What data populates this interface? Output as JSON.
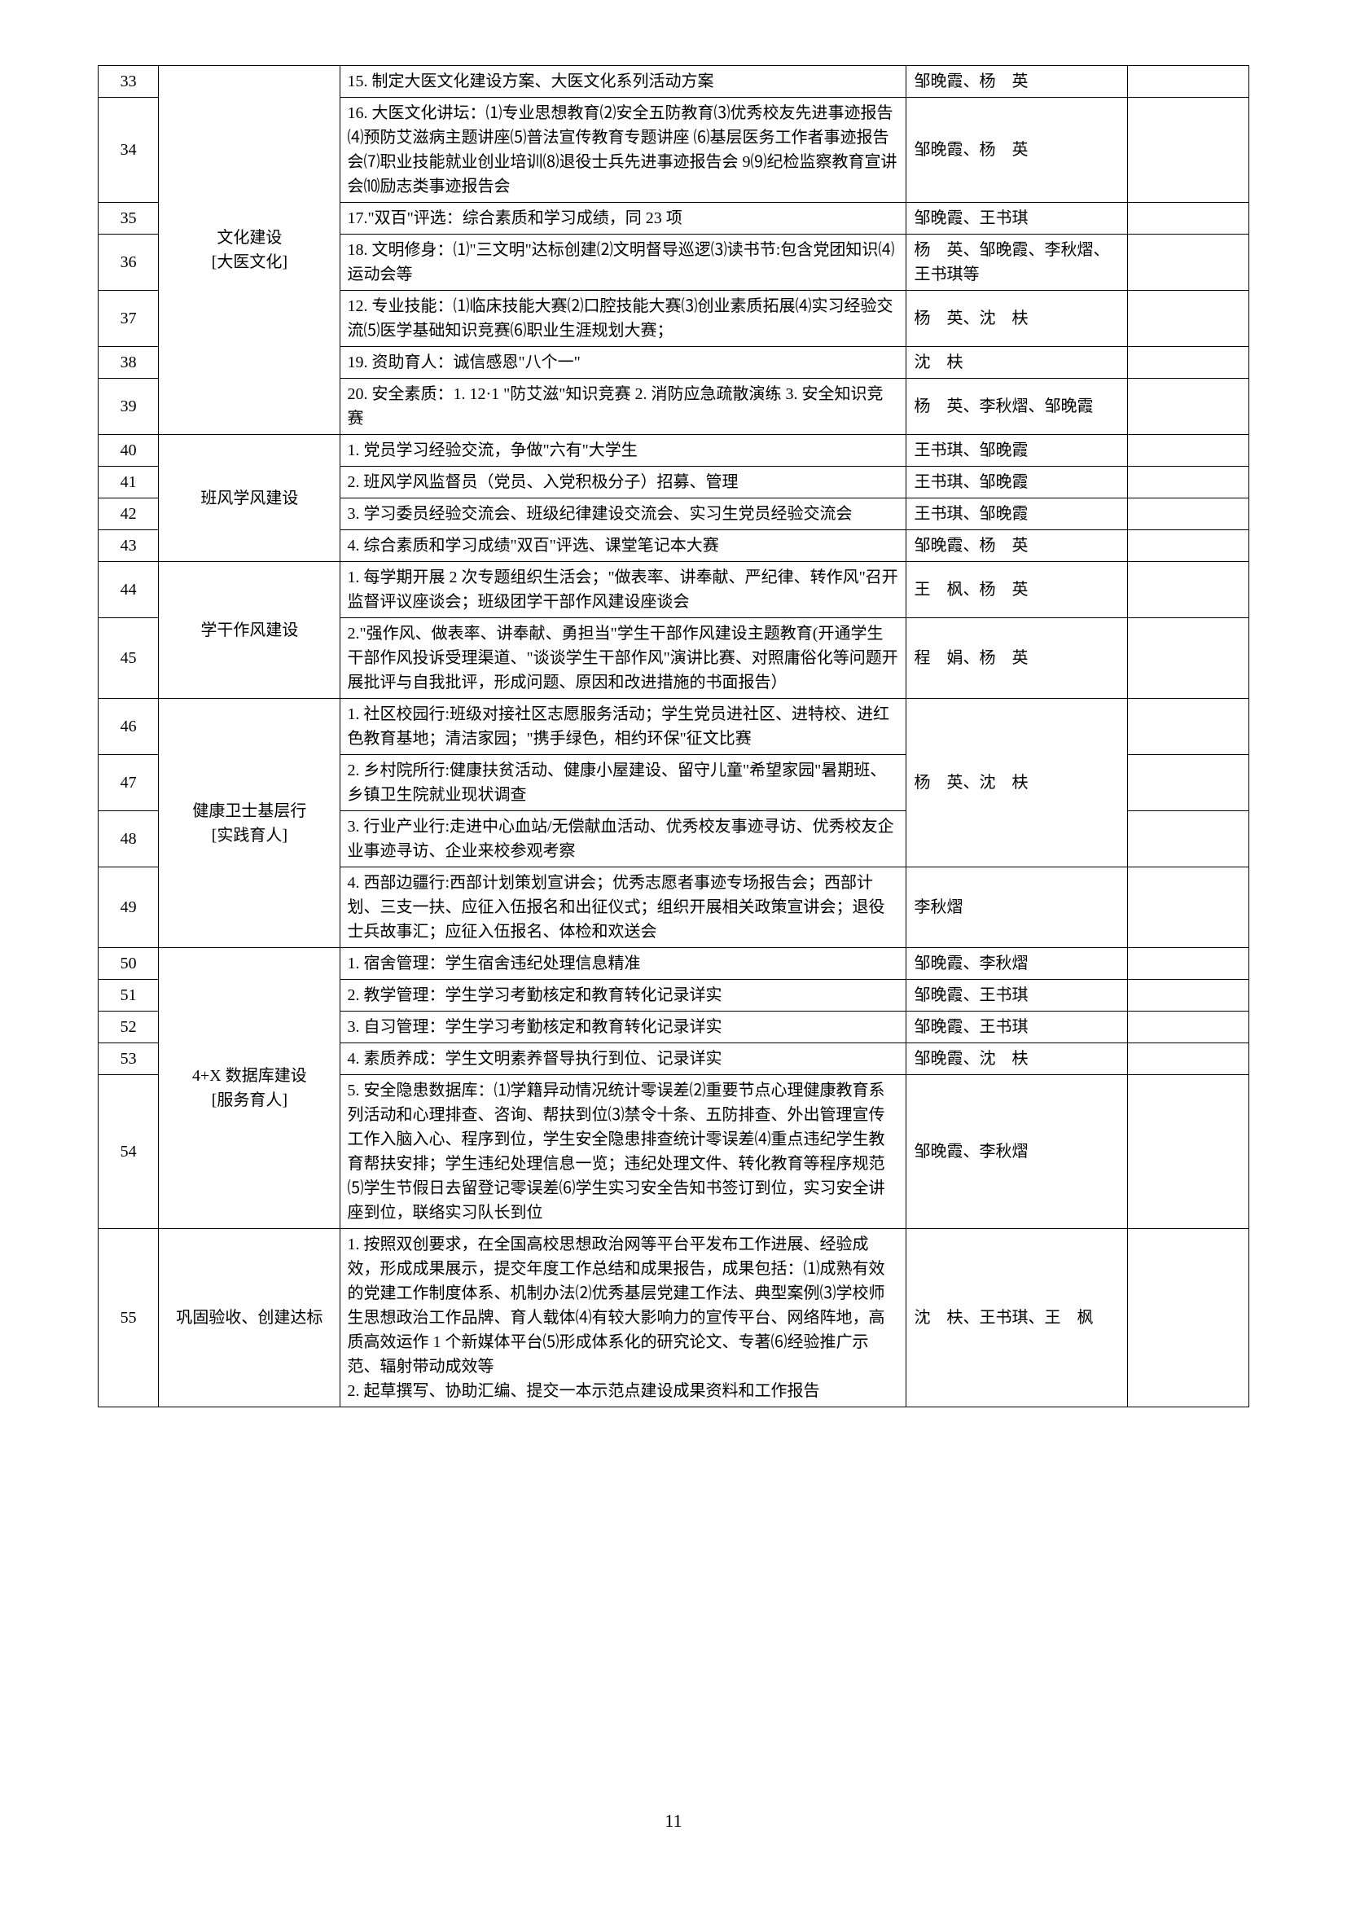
{
  "pageNumber": "11",
  "rows": [
    {
      "num": "33",
      "content": "15. 制定大医文化建设方案、大医文化系列活动方案",
      "person": "邹晚霞、杨　英"
    },
    {
      "num": "34",
      "content": "16. 大医文化讲坛：⑴专业思想教育⑵安全五防教育⑶优秀校友先进事迹报告⑷预防艾滋病主题讲座⑸普法宣传教育专题讲座 ⑹基层医务工作者事迹报告会⑺职业技能就业创业培训⑻退役士兵先进事迹报告会 9⑼纪检监察教育宣讲会⑽励志类事迹报告会",
      "person": "邹晚霞、杨　英"
    },
    {
      "num": "35",
      "content": "17.\"双百\"评选：综合素质和学习成绩，同 23 项",
      "person": "邹晚霞、王书琪"
    },
    {
      "num": "36",
      "content": "18. 文明修身：⑴\"三文明\"达标创建⑵文明督导巡逻⑶读书节:包含党团知识⑷运动会等",
      "person": "杨　英、邹晚霞、李秋熠、王书琪等"
    },
    {
      "num": "37",
      "content": "12. 专业技能：⑴临床技能大赛⑵口腔技能大赛⑶创业素质拓展⑷实习经验交流⑸医学基础知识竞赛⑹职业生涯规划大赛；",
      "person": "杨　英、沈　枎"
    },
    {
      "num": "38",
      "content": "19. 资助育人：诚信感恩\"八个一\"",
      "person": "沈　枎"
    },
    {
      "num": "39",
      "content": "20. 安全素质：1. 12·1 \"防艾滋\"知识竞赛 2. 消防应急疏散演练 3. 安全知识竞赛",
      "person": "杨　英、李秋熠、邹晚霞"
    },
    {
      "num": "40",
      "content": "1. 党员学习经验交流，争做\"六有\"大学生",
      "person": "王书琪、邹晚霞"
    },
    {
      "num": "41",
      "content": "2. 班风学风监督员（党员、入党积极分子）招募、管理",
      "person": "王书琪、邹晚霞"
    },
    {
      "num": "42",
      "content": "3. 学习委员经验交流会、班级纪律建设交流会、实习生党员经验交流会",
      "person": "王书琪、邹晚霞"
    },
    {
      "num": "43",
      "content": "4. 综合素质和学习成绩\"双百\"评选、课堂笔记本大赛",
      "person": "邹晚霞、杨　英"
    },
    {
      "num": "44",
      "content": "1. 每学期开展 2 次专题组织生活会；\"做表率、讲奉献、严纪律、转作风\"召开监督评议座谈会；班级团学干部作风建设座谈会",
      "person": "王　枫、杨　英"
    },
    {
      "num": "45",
      "content": "2.\"强作风、做表率、讲奉献、勇担当\"学生干部作风建设主题教育(开通学生干部作风投诉受理渠道、\"谈谈学生干部作风\"演讲比赛、对照庸俗化等问题开展批评与自我批评，形成问题、原因和改进措施的书面报告）",
      "person": "程　娟、杨　英"
    },
    {
      "num": "46",
      "content": "1. 社区校园行:班级对接社区志愿服务活动；学生党员进社区、进特校、进红色教育基地；清洁家园；\"携手绿色，相约环保\"征文比赛",
      "person": ""
    },
    {
      "num": "47",
      "content": "2. 乡村院所行:健康扶贫活动、健康小屋建设、留守儿童\"希望家园\"暑期班、乡镇卫生院就业现状调查",
      "person": ""
    },
    {
      "num": "48",
      "content": "3. 行业产业行:走进中心血站/无偿献血活动、优秀校友事迹寻访、优秀校友企业事迹寻访、企业来校参观考察",
      "person": ""
    },
    {
      "num": "49",
      "content": "4. 西部边疆行:西部计划策划宣讲会；优秀志愿者事迹专场报告会；西部计划、三支一扶、应征入伍报名和出征仪式；组织开展相关政策宣讲会；退役士兵故事汇；应征入伍报名、体检和欢送会",
      "person": "李秋熠"
    },
    {
      "num": "50",
      "content": "1. 宿舍管理：学生宿舍违纪处理信息精准",
      "person": "邹晚霞、李秋熠"
    },
    {
      "num": "51",
      "content": "2. 教学管理：学生学习考勤核定和教育转化记录详实",
      "person": "邹晚霞、王书琪"
    },
    {
      "num": "52",
      "content": "3. 自习管理：学生学习考勤核定和教育转化记录详实",
      "person": "邹晚霞、王书琪"
    },
    {
      "num": "53",
      "content": "4. 素质养成：学生文明素养督导执行到位、记录详实",
      "person": "邹晚霞、沈　枎"
    },
    {
      "num": "54",
      "content": "5. 安全隐患数据库：⑴学籍异动情况统计零误差⑵重要节点心理健康教育系列活动和心理排查、咨询、帮扶到位⑶禁令十条、五防排查、外出管理宣传工作入脑入心、程序到位，学生安全隐患排查统计零误差⑷重点违纪学生教育帮扶安排；学生违纪处理信息一览；违纪处理文件、转化教育等程序规范⑸学生节假日去留登记零误差⑹学生实习安全告知书签订到位，实习安全讲座到位，联络实习队长到位",
      "person": "邹晚霞、李秋熠"
    },
    {
      "num": "55",
      "content": "1. 按照双创要求，在全国高校思想政治网等平台平发布工作进展、经验成效，形成成果展示，提交年度工作总结和成果报告，成果包括：⑴成熟有效的党建工作制度体系、机制办法⑵优秀基层党建工作法、典型案例⑶学校师生思想政治工作品牌、育人载体⑷有较大影响力的宣传平台、网络阵地，高质高效运作 1 个新媒体平台⑸形成体系化的研究论文、专著⑹经验推广示范、辐射带动成效等\n2. 起草撰写、协助汇编、提交一本示范点建设成果资料和工作报告",
      "person": "沈　枎、王书琪、王　枫"
    }
  ],
  "categories": {
    "cat1": "文化建设\n[大医文化]",
    "cat2": "班风学风建设",
    "cat3": "学干作风建设",
    "cat4": "健康卫士基层行\n[实践育人]",
    "cat5": "4+X 数据库建设\n[服务育人]",
    "cat6": "巩固验收、创建达标"
  },
  "mergedPerson": "杨　英、沈　枎"
}
